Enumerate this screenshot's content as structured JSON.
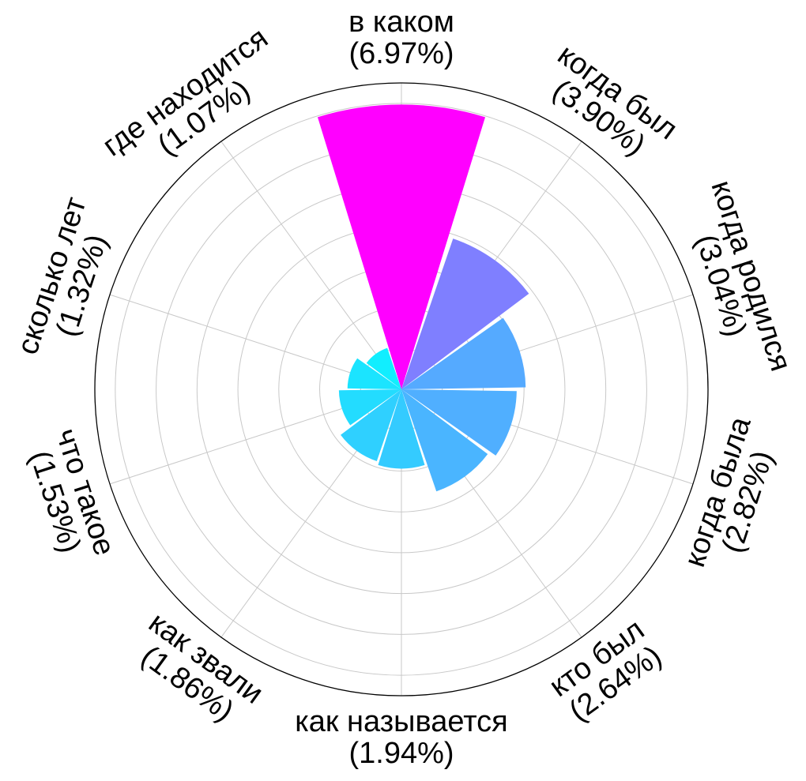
{
  "chart_data": {
    "type": "polar-bar",
    "title": "",
    "categories": [
      "в каком",
      "когда был",
      "когда родился",
      "когда была",
      "кто был",
      "как называется",
      "как звали",
      "что такое",
      "сколько лет",
      "где находится"
    ],
    "values": [
      6.97,
      3.9,
      3.04,
      2.82,
      2.64,
      1.94,
      1.86,
      1.53,
      1.32,
      1.07
    ],
    "value_labels": [
      "(6.97%)",
      "(3.90%)",
      "(3.04%)",
      "(2.82%)",
      "(2.64%)",
      "(1.94%)",
      "(1.86%)",
      "(1.53%)",
      "(1.32%)",
      "(1.07%)"
    ],
    "bar_colors": [
      "#ff00ff",
      "#7f7fff",
      "#55aaff",
      "#50afff",
      "#4ab5ff",
      "#34cbff",
      "#2fd0ff",
      "#23dcff",
      "#1be4ff",
      "#11eeff"
    ],
    "radial_range": [
      0,
      7.5
    ],
    "radial_gridlines": 7,
    "angular_gridlines": 10,
    "grid": true,
    "tick_labels": "none"
  }
}
